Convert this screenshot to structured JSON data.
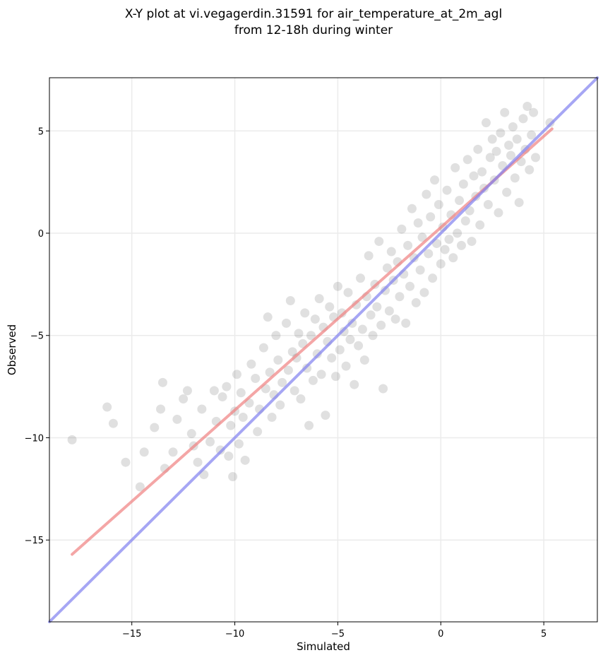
{
  "chart_data": {
    "type": "scatter",
    "title_line1": "X-Y plot at vi.vegagerdin.31591 for air_temperature_at_2m_agl",
    "title_line2": "from 12-18h during winter",
    "xlabel": "Simulated",
    "ylabel": "Observed",
    "xlim": [
      -19,
      7.6
    ],
    "ylim": [
      -19,
      7.6
    ],
    "xticks": [
      -15,
      -10,
      -5,
      0,
      5
    ],
    "yticks": [
      -15,
      -10,
      -5,
      0,
      5
    ],
    "xtick_labels": [
      "−15",
      "−10",
      "−5",
      "0",
      "5"
    ],
    "ytick_labels": [
      "−15",
      "−10",
      "−5",
      "0",
      "5"
    ],
    "grid": true,
    "colors": {
      "points": "#000000",
      "fit_line": "#f08080",
      "identity_line": "#8080f0",
      "grid": "#ebebeb"
    },
    "lines": [
      {
        "role": "linear-fit",
        "color": "#f08080",
        "x": [
          -17.9,
          5.4
        ],
        "y": [
          -15.7,
          5.1
        ]
      },
      {
        "role": "identity",
        "color": "#8080f0",
        "x": [
          -19,
          7.6
        ],
        "y": [
          -19,
          7.6
        ]
      }
    ],
    "points": [
      {
        "x": -17.9,
        "y": -10.1
      },
      {
        "x": -16.2,
        "y": -8.5
      },
      {
        "x": -15.9,
        "y": -9.3
      },
      {
        "x": -15.3,
        "y": -11.2
      },
      {
        "x": -14.6,
        "y": -12.4
      },
      {
        "x": -14.4,
        "y": -10.7
      },
      {
        "x": -13.9,
        "y": -9.5
      },
      {
        "x": -13.6,
        "y": -8.6
      },
      {
        "x": -13.5,
        "y": -7.3
      },
      {
        "x": -13.4,
        "y": -11.5
      },
      {
        "x": -13.0,
        "y": -10.7
      },
      {
        "x": -12.8,
        "y": -9.1
      },
      {
        "x": -12.5,
        "y": -8.1
      },
      {
        "x": -12.3,
        "y": -7.7
      },
      {
        "x": -12.1,
        "y": -9.8
      },
      {
        "x": -12.0,
        "y": -10.4
      },
      {
        "x": -11.8,
        "y": -11.2
      },
      {
        "x": -11.6,
        "y": -8.6
      },
      {
        "x": -11.5,
        "y": -11.8
      },
      {
        "x": -11.2,
        "y": -10.2
      },
      {
        "x": -11.0,
        "y": -7.7
      },
      {
        "x": -10.9,
        "y": -9.2
      },
      {
        "x": -10.7,
        "y": -10.6
      },
      {
        "x": -10.6,
        "y": -8.0
      },
      {
        "x": -10.4,
        "y": -7.5
      },
      {
        "x": -10.3,
        "y": -10.9
      },
      {
        "x": -10.2,
        "y": -9.4
      },
      {
        "x": -10.1,
        "y": -11.9
      },
      {
        "x": -10.0,
        "y": -8.7
      },
      {
        "x": -9.9,
        "y": -6.9
      },
      {
        "x": -9.8,
        "y": -10.3
      },
      {
        "x": -9.7,
        "y": -7.8
      },
      {
        "x": -9.6,
        "y": -9.0
      },
      {
        "x": -9.5,
        "y": -11.1
      },
      {
        "x": -9.3,
        "y": -8.3
      },
      {
        "x": -9.2,
        "y": -6.4
      },
      {
        "x": -9.0,
        "y": -7.1
      },
      {
        "x": -8.9,
        "y": -9.7
      },
      {
        "x": -8.8,
        "y": -8.6
      },
      {
        "x": -8.6,
        "y": -5.6
      },
      {
        "x": -8.5,
        "y": -7.6
      },
      {
        "x": -8.4,
        "y": -4.1
      },
      {
        "x": -8.3,
        "y": -6.8
      },
      {
        "x": -8.2,
        "y": -9.0
      },
      {
        "x": -8.1,
        "y": -7.9
      },
      {
        "x": -8.0,
        "y": -5.0
      },
      {
        "x": -7.9,
        "y": -6.2
      },
      {
        "x": -7.8,
        "y": -8.4
      },
      {
        "x": -7.7,
        "y": -7.3
      },
      {
        "x": -7.5,
        "y": -4.4
      },
      {
        "x": -7.4,
        "y": -6.7
      },
      {
        "x": -7.3,
        "y": -3.3
      },
      {
        "x": -7.2,
        "y": -5.8
      },
      {
        "x": -7.1,
        "y": -7.7
      },
      {
        "x": -7.0,
        "y": -6.1
      },
      {
        "x": -6.9,
        "y": -4.9
      },
      {
        "x": -6.8,
        "y": -8.1
      },
      {
        "x": -6.7,
        "y": -5.4
      },
      {
        "x": -6.6,
        "y": -3.9
      },
      {
        "x": -6.5,
        "y": -6.6
      },
      {
        "x": -6.4,
        "y": -9.4
      },
      {
        "x": -6.3,
        "y": -5.0
      },
      {
        "x": -6.2,
        "y": -7.2
      },
      {
        "x": -6.1,
        "y": -4.2
      },
      {
        "x": -6.0,
        "y": -5.9
      },
      {
        "x": -5.9,
        "y": -3.2
      },
      {
        "x": -5.8,
        "y": -6.9
      },
      {
        "x": -5.7,
        "y": -4.6
      },
      {
        "x": -5.6,
        "y": -8.9
      },
      {
        "x": -5.5,
        "y": -5.3
      },
      {
        "x": -5.4,
        "y": -3.6
      },
      {
        "x": -5.3,
        "y": -6.1
      },
      {
        "x": -5.2,
        "y": -4.1
      },
      {
        "x": -5.1,
        "y": -7.0
      },
      {
        "x": -5.0,
        "y": -2.6
      },
      {
        "x": -4.9,
        "y": -5.7
      },
      {
        "x": -4.8,
        "y": -3.9
      },
      {
        "x": -4.7,
        "y": -4.8
      },
      {
        "x": -4.6,
        "y": -6.5
      },
      {
        "x": -4.5,
        "y": -2.9
      },
      {
        "x": -4.4,
        "y": -5.2
      },
      {
        "x": -4.3,
        "y": -4.4
      },
      {
        "x": -4.2,
        "y": -7.4
      },
      {
        "x": -4.1,
        "y": -3.5
      },
      {
        "x": -4.0,
        "y": -5.5
      },
      {
        "x": -3.9,
        "y": -2.2
      },
      {
        "x": -3.8,
        "y": -4.7
      },
      {
        "x": -3.7,
        "y": -6.2
      },
      {
        "x": -3.6,
        "y": -3.1
      },
      {
        "x": -3.5,
        "y": -1.1
      },
      {
        "x": -3.4,
        "y": -4.0
      },
      {
        "x": -3.3,
        "y": -5.0
      },
      {
        "x": -3.2,
        "y": -2.5
      },
      {
        "x": -3.1,
        "y": -3.6
      },
      {
        "x": -3.0,
        "y": -0.4
      },
      {
        "x": -2.9,
        "y": -4.5
      },
      {
        "x": -2.8,
        "y": -7.6
      },
      {
        "x": -2.7,
        "y": -2.8
      },
      {
        "x": -2.6,
        "y": -1.7
      },
      {
        "x": -2.5,
        "y": -3.8
      },
      {
        "x": -2.4,
        "y": -0.9
      },
      {
        "x": -2.3,
        "y": -2.3
      },
      {
        "x": -2.2,
        "y": -4.2
      },
      {
        "x": -2.1,
        "y": -1.4
      },
      {
        "x": -2.0,
        "y": -3.1
      },
      {
        "x": -1.9,
        "y": 0.2
      },
      {
        "x": -1.8,
        "y": -2.0
      },
      {
        "x": -1.7,
        "y": -4.4
      },
      {
        "x": -1.6,
        "y": -0.6
      },
      {
        "x": -1.5,
        "y": -2.6
      },
      {
        "x": -1.4,
        "y": 1.2
      },
      {
        "x": -1.3,
        "y": -1.2
      },
      {
        "x": -1.2,
        "y": -3.4
      },
      {
        "x": -1.1,
        "y": 0.5
      },
      {
        "x": -1.0,
        "y": -1.8
      },
      {
        "x": -0.9,
        "y": -0.2
      },
      {
        "x": -0.8,
        "y": -2.9
      },
      {
        "x": -0.7,
        "y": 1.9
      },
      {
        "x": -0.6,
        "y": -1.0
      },
      {
        "x": -0.5,
        "y": 0.8
      },
      {
        "x": -0.4,
        "y": -2.2
      },
      {
        "x": -0.3,
        "y": 2.6
      },
      {
        "x": -0.2,
        "y": -0.5
      },
      {
        "x": -0.1,
        "y": 1.4
      },
      {
        "x": 0.0,
        "y": -1.5
      },
      {
        "x": 0.1,
        "y": 0.3
      },
      {
        "x": 0.2,
        "y": -0.8
      },
      {
        "x": 0.3,
        "y": 2.1
      },
      {
        "x": 0.4,
        "y": -0.3
      },
      {
        "x": 0.5,
        "y": 0.9
      },
      {
        "x": 0.6,
        "y": -1.2
      },
      {
        "x": 0.7,
        "y": 3.2
      },
      {
        "x": 0.8,
        "y": 0.0
      },
      {
        "x": 0.9,
        "y": 1.6
      },
      {
        "x": 1.0,
        "y": -0.6
      },
      {
        "x": 1.1,
        "y": 2.4
      },
      {
        "x": 1.2,
        "y": 0.6
      },
      {
        "x": 1.3,
        "y": 3.6
      },
      {
        "x": 1.4,
        "y": 1.1
      },
      {
        "x": 1.5,
        "y": -0.4
      },
      {
        "x": 1.6,
        "y": 2.8
      },
      {
        "x": 1.7,
        "y": 1.8
      },
      {
        "x": 1.8,
        "y": 4.1
      },
      {
        "x": 1.9,
        "y": 0.4
      },
      {
        "x": 2.0,
        "y": 3.0
      },
      {
        "x": 2.1,
        "y": 2.2
      },
      {
        "x": 2.2,
        "y": 5.4
      },
      {
        "x": 2.3,
        "y": 1.4
      },
      {
        "x": 2.4,
        "y": 3.7
      },
      {
        "x": 2.5,
        "y": 4.6
      },
      {
        "x": 2.6,
        "y": 2.6
      },
      {
        "x": 2.7,
        "y": 4.0
      },
      {
        "x": 2.8,
        "y": 1.0
      },
      {
        "x": 2.9,
        "y": 4.9
      },
      {
        "x": 3.0,
        "y": 3.3
      },
      {
        "x": 3.1,
        "y": 5.9
      },
      {
        "x": 3.2,
        "y": 2.0
      },
      {
        "x": 3.3,
        "y": 4.3
      },
      {
        "x": 3.4,
        "y": 3.8
      },
      {
        "x": 3.5,
        "y": 5.2
      },
      {
        "x": 3.6,
        "y": 2.7
      },
      {
        "x": 3.7,
        "y": 4.6
      },
      {
        "x": 3.8,
        "y": 1.5
      },
      {
        "x": 3.9,
        "y": 3.5
      },
      {
        "x": 4.0,
        "y": 5.6
      },
      {
        "x": 4.1,
        "y": 4.1
      },
      {
        "x": 4.2,
        "y": 6.2
      },
      {
        "x": 4.3,
        "y": 3.1
      },
      {
        "x": 4.4,
        "y": 4.8
      },
      {
        "x": 4.5,
        "y": 5.9
      },
      {
        "x": 4.6,
        "y": 3.7
      },
      {
        "x": 5.3,
        "y": 5.4
      }
    ]
  }
}
